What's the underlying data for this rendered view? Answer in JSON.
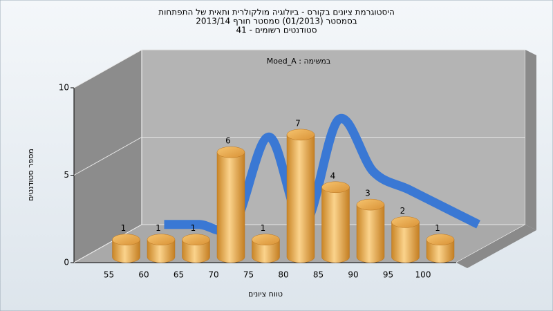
{
  "chart_data": {
    "type": "bar",
    "title": [
      "היסטוגרמת ציונים בקורס - ביולוגיה מולקולרית ותאית של התפתחות",
      "בסמסטר (01/2013) סמסטר חורף 2013/14",
      "סטודנטים רשומים - 41"
    ],
    "annotation": "Moed_A : במשימה",
    "x_label": "טווח ציונים",
    "y_label": "מספר סטודנטים",
    "categories": [
      "55",
      "60",
      "65",
      "70",
      "75",
      "80",
      "85",
      "90",
      "95",
      "100"
    ],
    "values": [
      1,
      1,
      1,
      6,
      1,
      7,
      4,
      3,
      2,
      1
    ],
    "color": "#e9a94a",
    "line_color": "#3a78d4",
    "ylim": [
      0,
      10
    ],
    "yticks": [
      0,
      5,
      10
    ],
    "grid": true
  }
}
